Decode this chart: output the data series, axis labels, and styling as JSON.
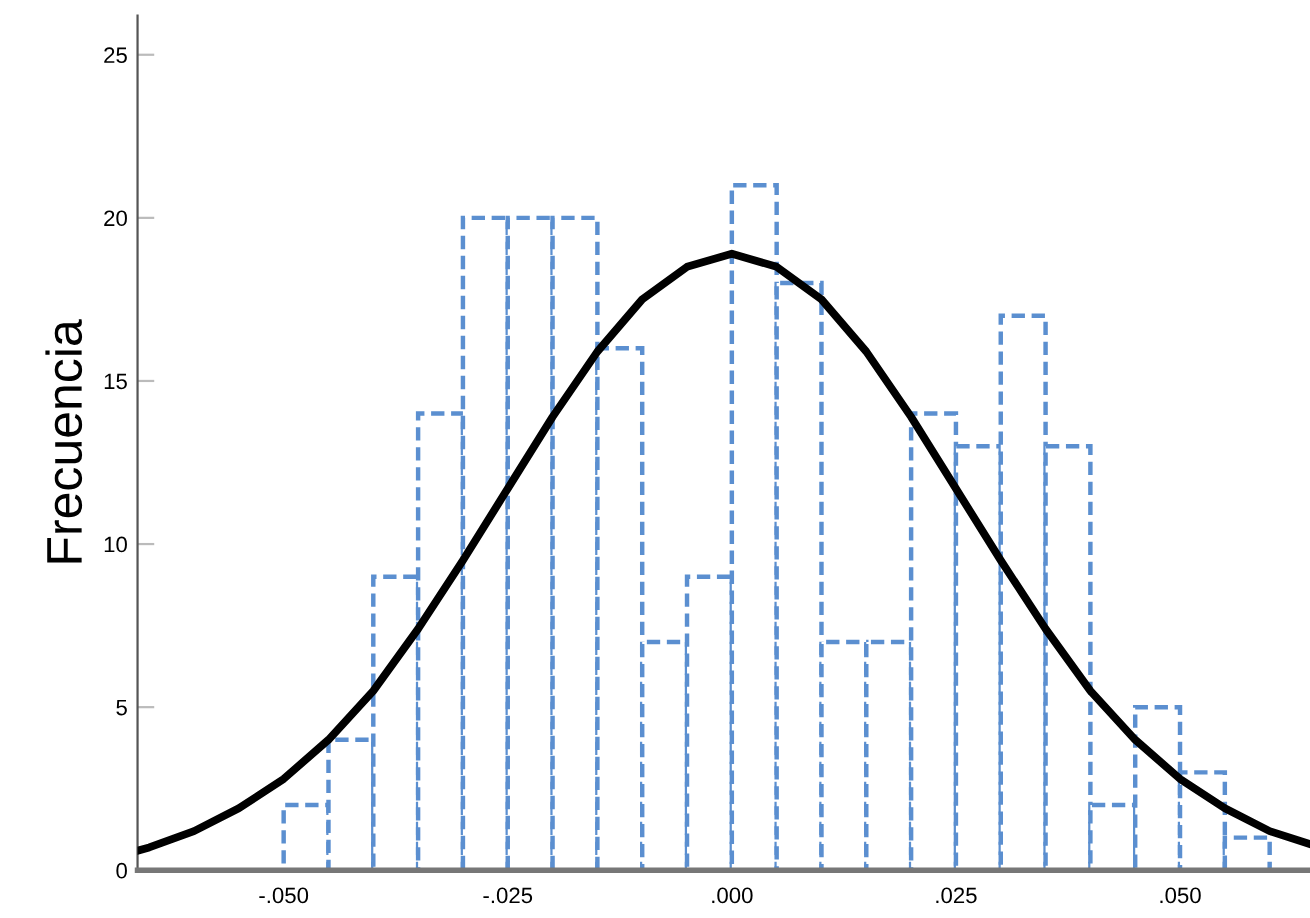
{
  "chart_data": {
    "type": "histogram",
    "ylabel": "Frecuencia",
    "xlim": [
      -0.0663,
      0.0645
    ],
    "ylim": [
      0,
      26.2
    ],
    "xticks": [
      {
        "value": -0.05,
        "label": "-.050"
      },
      {
        "value": -0.025,
        "label": "-.025"
      },
      {
        "value": 0,
        "label": ".000"
      },
      {
        "value": 0.025,
        "label": ".025"
      },
      {
        "value": 0.05,
        "label": ".050"
      }
    ],
    "yticks": [
      0,
      5,
      10,
      15,
      20,
      25
    ],
    "grid": false,
    "legend": false,
    "series": [
      {
        "type": "histogram",
        "color": "#5b8fd0",
        "line_style": "dashed",
        "bins": [
          -0.05,
          -0.045,
          -0.04,
          -0.035,
          -0.03,
          -0.025,
          -0.02,
          -0.015,
          -0.01,
          -0.005,
          0,
          0.005,
          0.01,
          0.015,
          0.02,
          0.025,
          0.03,
          0.035,
          0.04,
          0.045,
          0.05,
          0.055,
          0.06
        ],
        "values": [
          2,
          4,
          9,
          14,
          20,
          20,
          20,
          16,
          7,
          9,
          21,
          18,
          7,
          7,
          14,
          13,
          17,
          13,
          2,
          5,
          3,
          1
        ]
      },
      {
        "type": "line",
        "color": "#000000",
        "line_style": "solid",
        "x": [
          -0.0663,
          -0.065,
          -0.06,
          -0.055,
          -0.05,
          -0.045,
          -0.04,
          -0.035,
          -0.03,
          -0.025,
          -0.02,
          -0.015,
          -0.01,
          -0.005,
          0,
          0.005,
          0.01,
          0.015,
          0.02,
          0.025,
          0.03,
          0.035,
          0.04,
          0.045,
          0.05,
          0.055,
          0.06,
          0.0645
        ],
        "values": [
          0.6,
          0.7,
          1.2,
          1.9,
          2.8,
          4.0,
          5.5,
          7.4,
          9.5,
          11.7,
          13.9,
          15.9,
          17.5,
          18.5,
          18.9,
          18.5,
          17.5,
          15.9,
          13.9,
          11.7,
          9.5,
          7.4,
          5.5,
          4.0,
          2.8,
          1.9,
          1.2,
          0.8
        ]
      }
    ]
  }
}
